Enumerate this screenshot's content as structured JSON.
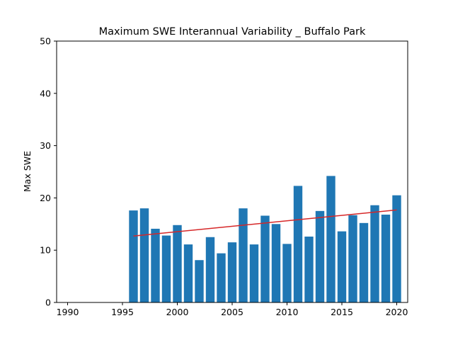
{
  "chart_data": {
    "type": "bar",
    "title": "Maximum SWE Interannual Variability _ Buffalo Park",
    "xlabel": "",
    "ylabel": "Max SWE",
    "xlim": [
      1989,
      2021
    ],
    "ylim": [
      0,
      50
    ],
    "grid": false,
    "x_ticks": [
      1990,
      1995,
      2000,
      2005,
      2010,
      2015,
      2020
    ],
    "y_ticks": [
      0,
      10,
      20,
      30,
      40,
      50
    ],
    "x": [
      1996,
      1997,
      1998,
      1999,
      2000,
      2001,
      2002,
      2003,
      2004,
      2005,
      2006,
      2007,
      2008,
      2009,
      2010,
      2011,
      2012,
      2013,
      2014,
      2015,
      2016,
      2017,
      2018,
      2019,
      2020
    ],
    "values": [
      17.6,
      18.0,
      14.1,
      12.8,
      14.8,
      11.1,
      8.1,
      12.5,
      9.4,
      11.5,
      18.0,
      11.1,
      16.6,
      15.0,
      11.2,
      22.3,
      12.6,
      17.5,
      24.2,
      13.6,
      16.7,
      15.2,
      18.6,
      16.8,
      20.5
    ],
    "trend_line": {
      "x": [
        1996,
        2020
      ],
      "y": [
        12.7,
        17.7
      ]
    },
    "colors": {
      "bars": "#1f77b4",
      "trend": "#d62728"
    }
  }
}
